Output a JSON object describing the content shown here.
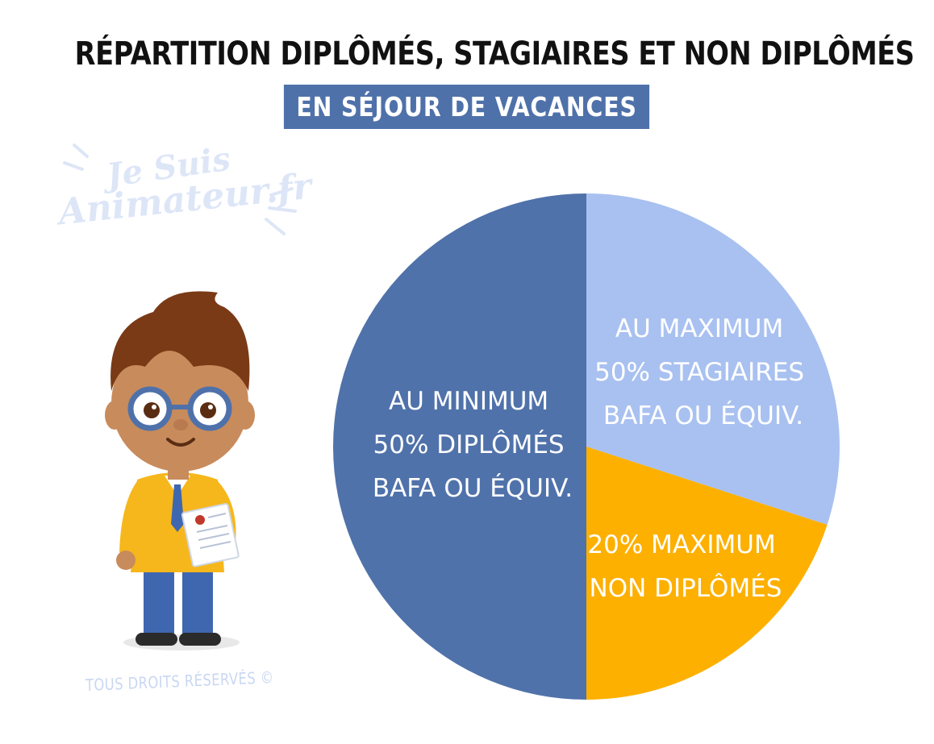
{
  "header": {
    "title": "RÉPARTITION DIPLÔMÉS, STAGIAIRES ET NON DIPLÔMÉS",
    "subtitle": "EN SÉJOUR DE VACANCES"
  },
  "logo": {
    "line1": "Je Suis",
    "line2": "Animateur.fr"
  },
  "footer": {
    "copyright": "TOUS DROITS RÉSERVÉS ©"
  },
  "character": {
    "icon": "animator-boy-illustration"
  },
  "colors": {
    "dark_blue": "#5072aa",
    "light_blue": "#a9c1f0",
    "orange": "#fdb000",
    "title_band": "#4f71aa"
  },
  "chart_data": {
    "type": "pie",
    "start": "top, clockwise",
    "slices": [
      {
        "id": "stagiaires",
        "value": 30,
        "color": "#a9c1f0",
        "label": [
          "AU MAXIMUM",
          "50% STAGIAIRES",
          "BAFA OU ÉQUIV."
        ]
      },
      {
        "id": "non-diplomes",
        "value": 20,
        "color": "#fdb000",
        "label": [
          "20% MAXIMUM",
          "NON DIPLÔMÉS"
        ]
      },
      {
        "id": "diplomes",
        "value": 50,
        "color": "#5072aa",
        "label": [
          "AU MINIMUM",
          "50% DIPLÔMÉS",
          "BAFA OU ÉQUIV."
        ]
      }
    ]
  }
}
